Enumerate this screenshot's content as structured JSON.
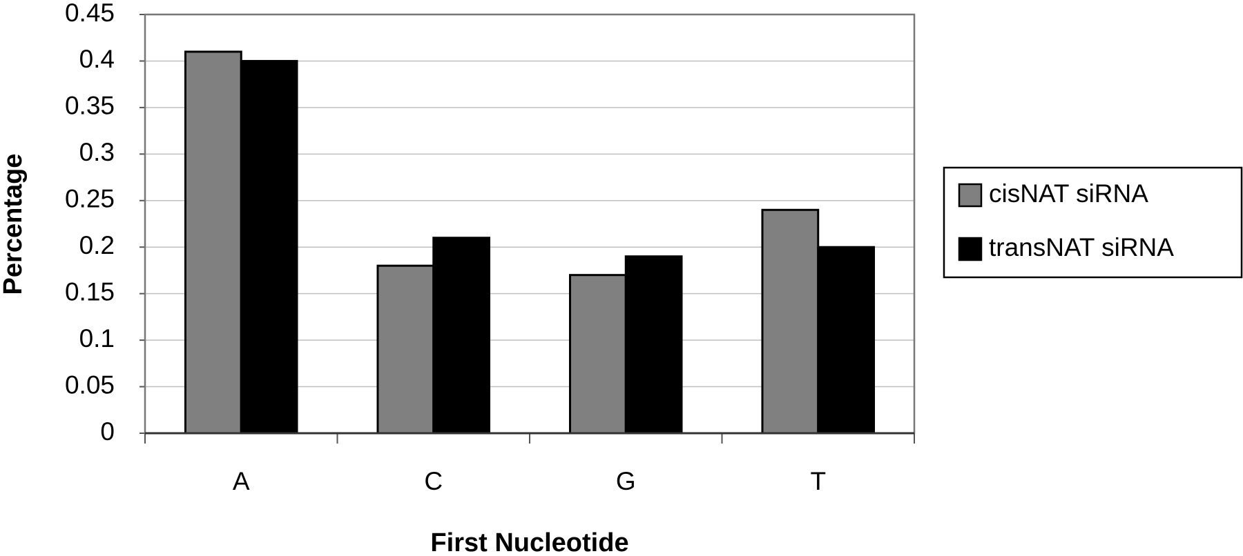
{
  "chart_data": {
    "type": "bar",
    "x_label": "First Nucleotide",
    "y_label": "Percentage",
    "categories": [
      "A",
      "C",
      "G",
      "T"
    ],
    "series": [
      {
        "name": "cisNAT siRNA",
        "color": "#808080",
        "values": [
          0.41,
          0.18,
          0.17,
          0.24
        ]
      },
      {
        "name": "transNAT siRNA",
        "color": "#000000",
        "values": [
          0.4,
          0.21,
          0.19,
          0.2
        ]
      }
    ],
    "ylim": [
      0,
      0.45
    ],
    "yticks": [
      0,
      0.05,
      0.1,
      0.15,
      0.2,
      0.25,
      0.3,
      0.35,
      0.4,
      0.45
    ],
    "grid": true,
    "legend": "right"
  }
}
